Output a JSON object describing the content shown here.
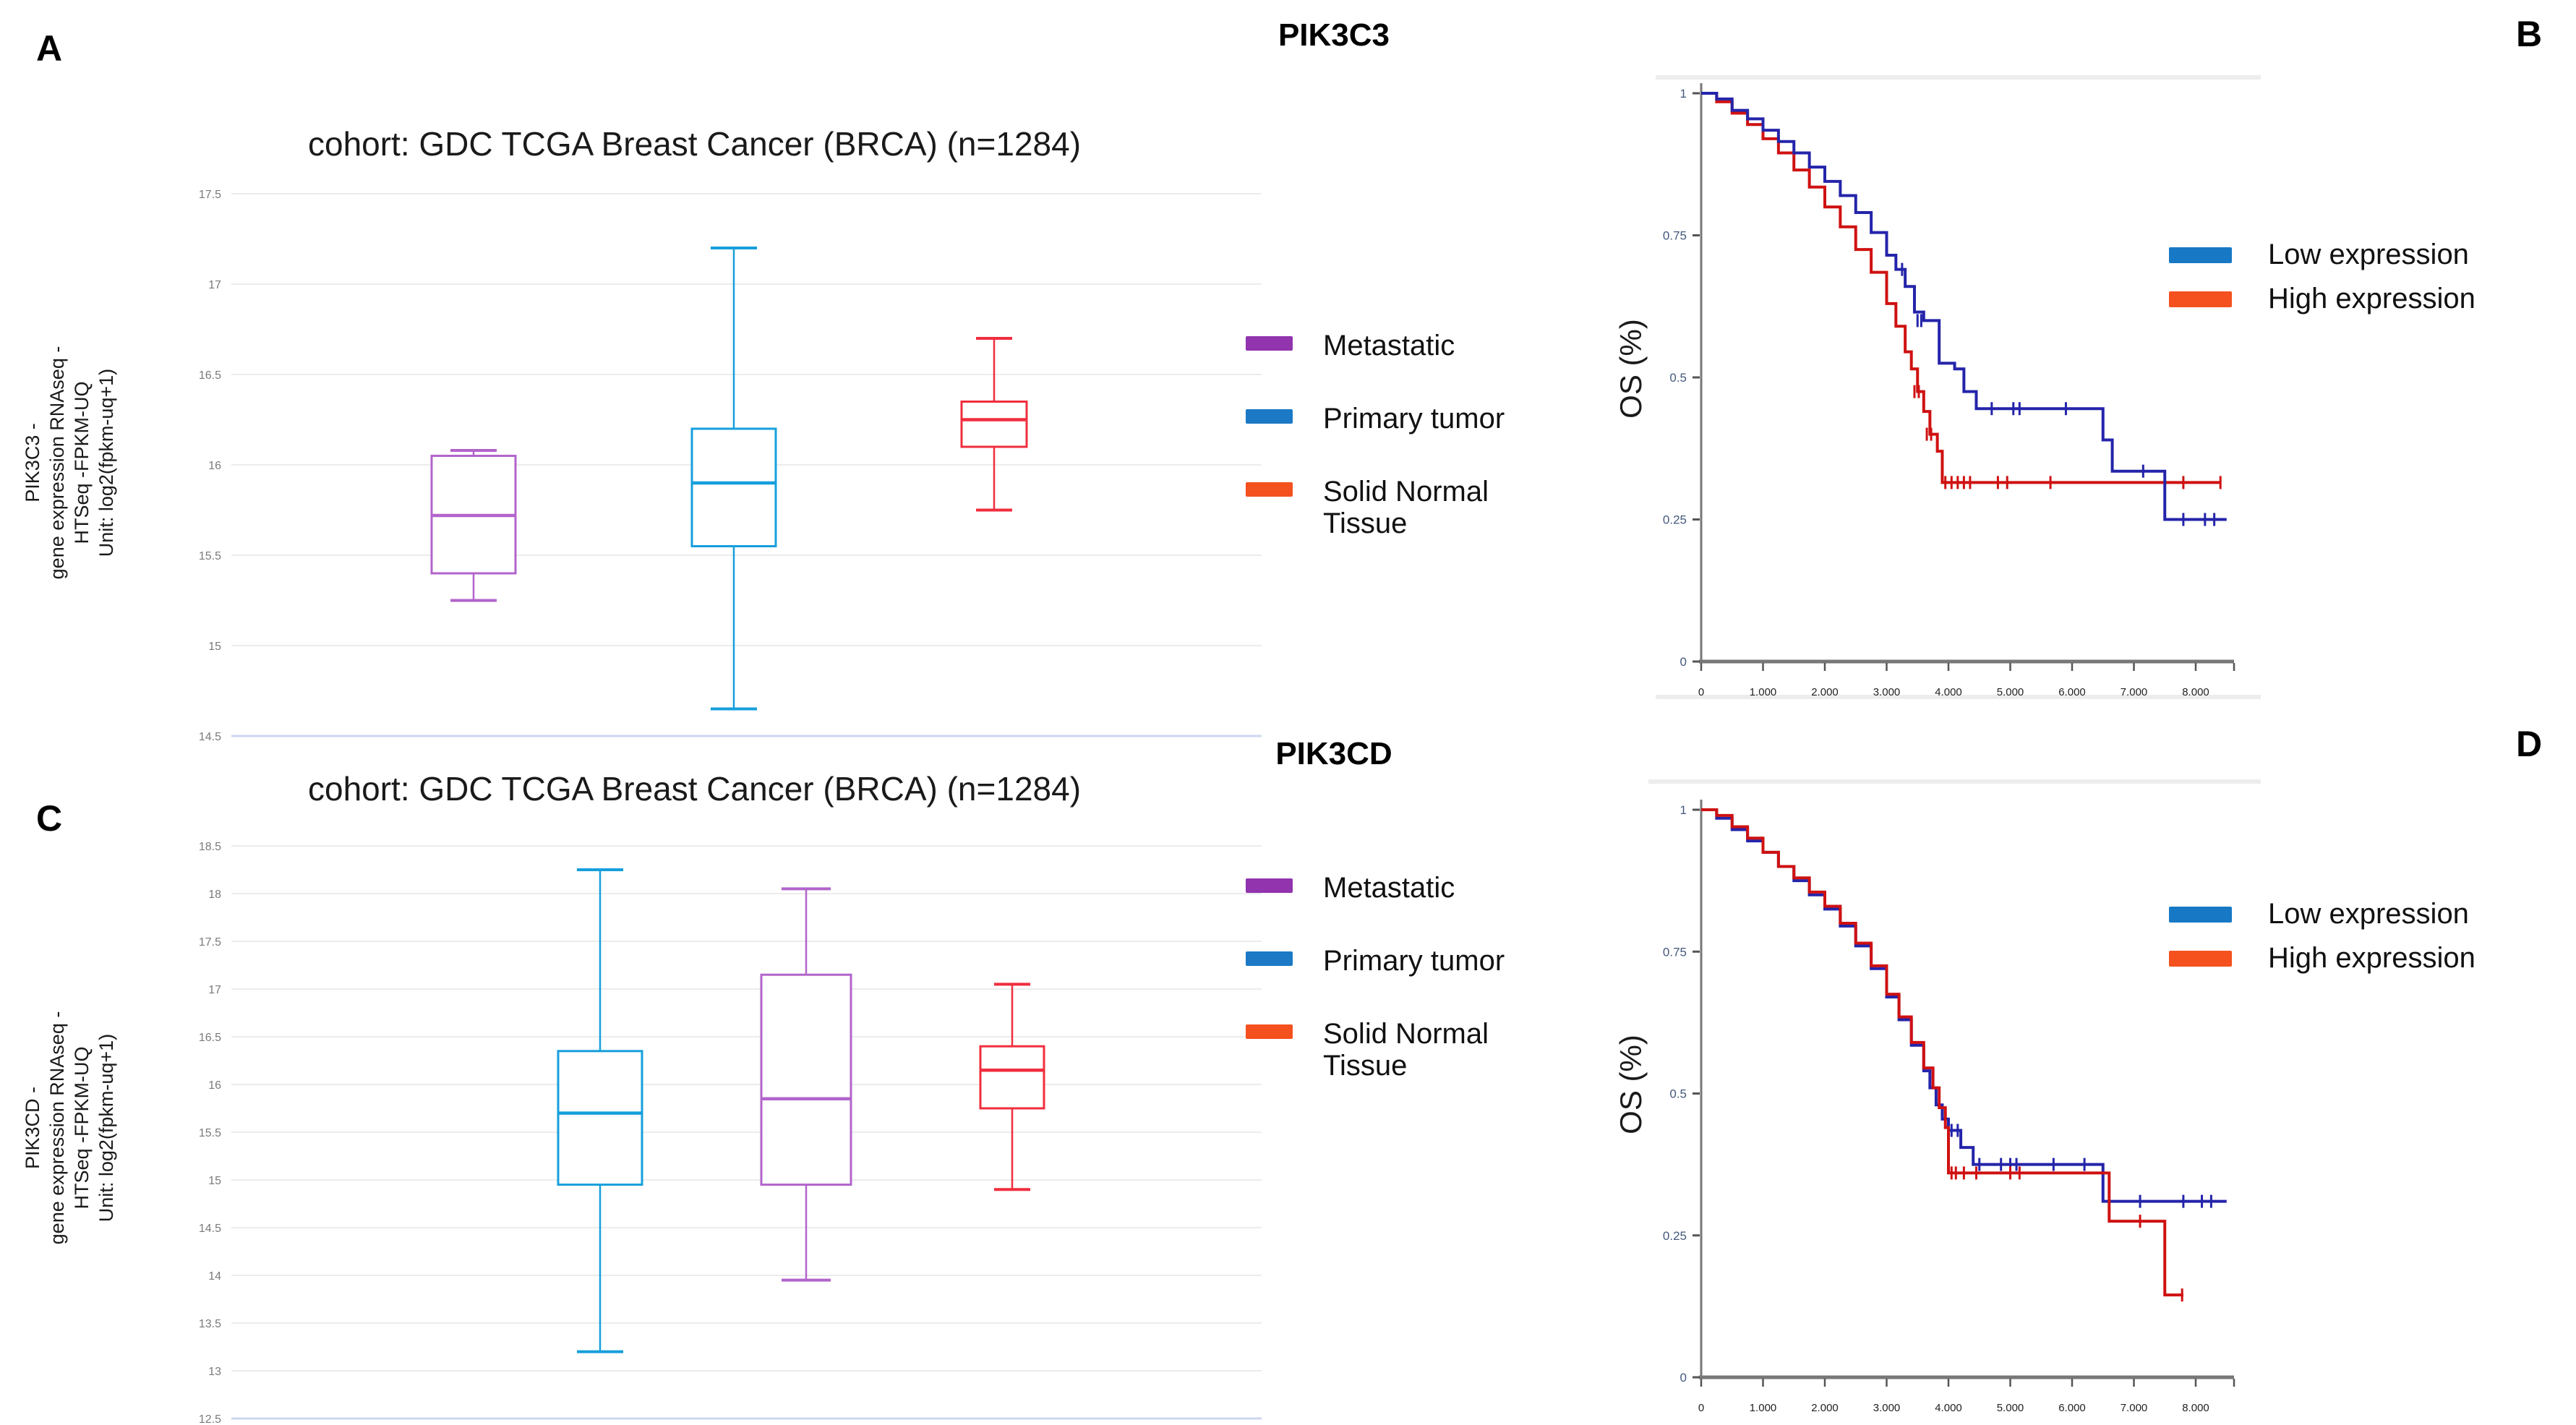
{
  "titles": {
    "top_gene": "PIK3C3",
    "middle_gene": "PIK3CD"
  },
  "panel_letters": {
    "a": "A",
    "b": "B",
    "c": "C",
    "d": "D"
  },
  "colors": {
    "legend_metastatic": "#9134ae",
    "legend_primary": "#1b79c6",
    "legend_normal": "#f4511e",
    "legend_low": "#1779c5",
    "legend_high": "#f4511e",
    "box_metastatic": "#b264cb",
    "box_primary": "#169fdc",
    "box_normal": "#f02e3e",
    "km_low": "#2424aa",
    "km_high": "#cf1111",
    "grid": "#ececec",
    "axis_bottom_blue": "#ccd7f0",
    "km_axis": "#777777",
    "km_tick": "#555555",
    "km_ytick_text": "#44597d",
    "km_xtick_text": "#222222",
    "box_tick_text": "#7a7a7a",
    "panel_border": "#ededed"
  },
  "group_legend": {
    "items": [
      {
        "label": "Metastatic",
        "color_key": "legend_metastatic"
      },
      {
        "label": "Primary tumor",
        "color_key": "legend_primary"
      },
      {
        "label": "Solid Normal Tissue",
        "color_key": "legend_normal"
      }
    ]
  },
  "km_legend": {
    "items": [
      {
        "label": "Low expression",
        "color_key": "legend_low"
      },
      {
        "label": "High expression",
        "color_key": "legend_high"
      }
    ]
  },
  "chart_data": [
    {
      "id": "A",
      "type": "box",
      "gene": "PIK3C3",
      "title": "cohort: GDC TCGA Breast Cancer (BRCA) (n=1284)",
      "ylabel_lines": [
        "PIK3C3 -",
        "gene expression RNAseq -",
        "HTSeq -FPKM-UQ",
        "Unit: log2(fpkm-uq+1)"
      ],
      "ylim": [
        14.5,
        17.5
      ],
      "grid": true,
      "ytick_values": [
        17.5,
        17,
        16.5,
        16,
        15.5,
        15,
        14.5
      ],
      "ytick_labels": [
        "17.5",
        "17",
        "16.5",
        "16",
        "15.5",
        "15",
        "14.5"
      ],
      "groups": [
        {
          "name": "Metastatic",
          "color_key": "box_metastatic",
          "whisker_low": 15.25,
          "q1": 15.4,
          "median": 15.72,
          "q3": 16.05,
          "whisker_high": 16.08
        },
        {
          "name": "Primary tumor",
          "color_key": "box_primary",
          "whisker_low": 14.65,
          "q1": 15.55,
          "median": 15.9,
          "q3": 16.2,
          "whisker_high": 17.2
        },
        {
          "name": "Solid Normal Tissue",
          "color_key": "box_normal",
          "whisker_low": 15.75,
          "q1": 16.1,
          "median": 16.25,
          "q3": 16.35,
          "whisker_high": 16.7
        }
      ]
    },
    {
      "id": "B",
      "type": "line",
      "subtype": "kaplan_meier",
      "gene": "PIK3C3",
      "ylabel": "OS (%)",
      "xlim": [
        0,
        8600
      ],
      "ylim": [
        0,
        1
      ],
      "ytick_values": [
        1,
        0.75,
        0.5,
        0.25,
        0
      ],
      "ytick_labels": [
        "1",
        "0.75",
        "0.5",
        "0.25",
        "0"
      ],
      "xtick_values": [
        0,
        1000,
        2000,
        3000,
        4000,
        5000,
        6000,
        7000,
        8000
      ],
      "xtick_labels": [
        "0",
        "1.000",
        "2.000",
        "3.000",
        "4.000",
        "5.000",
        "6.000",
        "7.000",
        "8.000"
      ],
      "series": [
        {
          "name": "High expression",
          "color_key": "km_high",
          "steps": [
            [
              0,
              1
            ],
            [
              250,
              0.985
            ],
            [
              500,
              0.965
            ],
            [
              750,
              0.945
            ],
            [
              1000,
              0.92
            ],
            [
              1250,
              0.895
            ],
            [
              1500,
              0.865
            ],
            [
              1750,
              0.835
            ],
            [
              2000,
              0.8
            ],
            [
              2250,
              0.765
            ],
            [
              2500,
              0.725
            ],
            [
              2750,
              0.685
            ],
            [
              3000,
              0.63
            ],
            [
              3150,
              0.59
            ],
            [
              3300,
              0.545
            ],
            [
              3400,
              0.515
            ],
            [
              3500,
              0.475
            ],
            [
              3600,
              0.44
            ],
            [
              3700,
              0.4
            ],
            [
              3820,
              0.37
            ],
            [
              3900,
              0.315
            ],
            [
              8400,
              0.315
            ]
          ],
          "censors": [
            [
              3450,
              0.475
            ],
            [
              3520,
              0.475
            ],
            [
              3650,
              0.4
            ],
            [
              3720,
              0.4
            ],
            [
              3950,
              0.315
            ],
            [
              4050,
              0.315
            ],
            [
              4150,
              0.315
            ],
            [
              4250,
              0.315
            ],
            [
              4350,
              0.315
            ],
            [
              4800,
              0.315
            ],
            [
              4950,
              0.315
            ],
            [
              5650,
              0.315
            ],
            [
              7800,
              0.315
            ],
            [
              8400,
              0.315
            ]
          ]
        },
        {
          "name": "Low expression",
          "color_key": "km_low",
          "steps": [
            [
              0,
              1
            ],
            [
              250,
              0.99
            ],
            [
              500,
              0.97
            ],
            [
              750,
              0.955
            ],
            [
              1000,
              0.935
            ],
            [
              1250,
              0.915
            ],
            [
              1500,
              0.895
            ],
            [
              1750,
              0.87
            ],
            [
              2000,
              0.845
            ],
            [
              2250,
              0.82
            ],
            [
              2500,
              0.79
            ],
            [
              2750,
              0.755
            ],
            [
              3000,
              0.715
            ],
            [
              3150,
              0.69
            ],
            [
              3300,
              0.66
            ],
            [
              3450,
              0.615
            ],
            [
              3600,
              0.6
            ],
            [
              3850,
              0.525
            ],
            [
              4100,
              0.515
            ],
            [
              4250,
              0.475
            ],
            [
              4450,
              0.445
            ],
            [
              6350,
              0.445
            ],
            [
              6500,
              0.39
            ],
            [
              6650,
              0.335
            ],
            [
              7400,
              0.335
            ],
            [
              7500,
              0.25
            ],
            [
              8500,
              0.25
            ]
          ],
          "censors": [
            [
              3250,
              0.69
            ],
            [
              3500,
              0.6
            ],
            [
              3560,
              0.6
            ],
            [
              4700,
              0.445
            ],
            [
              5050,
              0.445
            ],
            [
              5150,
              0.445
            ],
            [
              5900,
              0.445
            ],
            [
              7150,
              0.335
            ],
            [
              7800,
              0.25
            ],
            [
              8150,
              0.25
            ],
            [
              8300,
              0.25
            ]
          ]
        }
      ]
    },
    {
      "id": "C",
      "type": "box",
      "gene": "PIK3CD",
      "title": "cohort: GDC TCGA Breast Cancer (BRCA) (n=1284)",
      "ylabel_lines": [
        "PIK3CD -",
        "gene expression RNAseq -",
        "HTSeq -FPKM-UQ",
        "Unit: log2(fpkm-uq+1)"
      ],
      "ylim": [
        12.5,
        18.5
      ],
      "grid": true,
      "ytick_values": [
        18.5,
        18,
        17.5,
        17,
        16.5,
        16,
        15.5,
        15,
        14.5,
        14,
        13.5,
        13,
        12.5
      ],
      "ytick_labels": [
        "18.5",
        "18",
        "17.5",
        "17",
        "16.5",
        "16",
        "15.5",
        "15",
        "14.5",
        "14",
        "13.5",
        "13",
        "12.5"
      ],
      "groups": [
        {
          "name": "Primary tumor",
          "color_key": "box_primary",
          "whisker_low": 13.2,
          "q1": 14.95,
          "median": 15.7,
          "q3": 16.35,
          "whisker_high": 18.25
        },
        {
          "name": "Metastatic",
          "color_key": "box_metastatic",
          "whisker_low": 13.95,
          "q1": 14.95,
          "median": 15.85,
          "q3": 17.15,
          "whisker_high": 18.05
        },
        {
          "name": "Solid Normal Tissue",
          "color_key": "box_normal",
          "whisker_low": 14.9,
          "q1": 15.75,
          "median": 16.15,
          "q3": 16.4,
          "whisker_high": 17.05
        }
      ]
    },
    {
      "id": "D",
      "type": "line",
      "subtype": "kaplan_meier",
      "gene": "PIK3CD",
      "ylabel": "OS (%)",
      "xlim": [
        0,
        8600
      ],
      "ylim": [
        0,
        1
      ],
      "ytick_values": [
        1,
        0.75,
        0.5,
        0.25,
        0
      ],
      "ytick_labels": [
        "1",
        "0.75",
        "0.5",
        "0.25",
        "0"
      ],
      "xtick_values": [
        0,
        1000,
        2000,
        3000,
        4000,
        5000,
        6000,
        7000,
        8000
      ],
      "xtick_labels": [
        "0",
        "1.000",
        "2.000",
        "3.000",
        "4.000",
        "5.000",
        "6.000",
        "7.000",
        "8.000"
      ],
      "series": [
        {
          "name": "Low expression",
          "color_key": "km_low",
          "steps": [
            [
              0,
              1
            ],
            [
              250,
              0.985
            ],
            [
              500,
              0.965
            ],
            [
              750,
              0.945
            ],
            [
              1000,
              0.925
            ],
            [
              1250,
              0.9
            ],
            [
              1500,
              0.875
            ],
            [
              1750,
              0.85
            ],
            [
              2000,
              0.825
            ],
            [
              2250,
              0.795
            ],
            [
              2500,
              0.76
            ],
            [
              2750,
              0.72
            ],
            [
              3000,
              0.67
            ],
            [
              3200,
              0.63
            ],
            [
              3400,
              0.585
            ],
            [
              3600,
              0.54
            ],
            [
              3700,
              0.51
            ],
            [
              3800,
              0.48
            ],
            [
              3900,
              0.455
            ],
            [
              4000,
              0.435
            ],
            [
              4200,
              0.405
            ],
            [
              4400,
              0.375
            ],
            [
              6400,
              0.375
            ],
            [
              6500,
              0.31
            ],
            [
              8500,
              0.31
            ]
          ],
          "censors": [
            [
              4050,
              0.435
            ],
            [
              4150,
              0.435
            ],
            [
              4500,
              0.375
            ],
            [
              4850,
              0.375
            ],
            [
              5000,
              0.375
            ],
            [
              5100,
              0.375
            ],
            [
              5700,
              0.375
            ],
            [
              6200,
              0.375
            ],
            [
              7100,
              0.31
            ],
            [
              7800,
              0.31
            ],
            [
              8100,
              0.31
            ],
            [
              8250,
              0.31
            ]
          ]
        },
        {
          "name": "High expression",
          "color_key": "km_high",
          "steps": [
            [
              0,
              1
            ],
            [
              250,
              0.99
            ],
            [
              500,
              0.97
            ],
            [
              750,
              0.95
            ],
            [
              1000,
              0.925
            ],
            [
              1250,
              0.9
            ],
            [
              1500,
              0.88
            ],
            [
              1750,
              0.855
            ],
            [
              2000,
              0.83
            ],
            [
              2250,
              0.8
            ],
            [
              2500,
              0.765
            ],
            [
              2750,
              0.725
            ],
            [
              3000,
              0.675
            ],
            [
              3200,
              0.635
            ],
            [
              3400,
              0.59
            ],
            [
              3600,
              0.545
            ],
            [
              3750,
              0.51
            ],
            [
              3850,
              0.475
            ],
            [
              3950,
              0.44
            ],
            [
              4000,
              0.36
            ],
            [
              6500,
              0.36
            ],
            [
              6600,
              0.275
            ],
            [
              7400,
              0.275
            ],
            [
              7500,
              0.145
            ],
            [
              7800,
              0.145
            ]
          ],
          "censors": [
            [
              4050,
              0.36
            ],
            [
              4120,
              0.36
            ],
            [
              4250,
              0.36
            ],
            [
              4450,
              0.36
            ],
            [
              5000,
              0.36
            ],
            [
              5150,
              0.36
            ],
            [
              7100,
              0.275
            ],
            [
              7780,
              0.145
            ]
          ]
        }
      ]
    }
  ]
}
